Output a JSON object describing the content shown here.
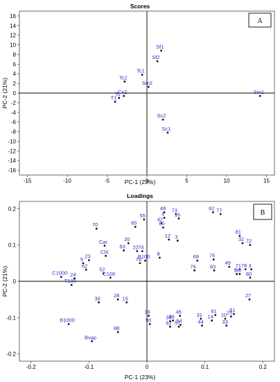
{
  "chart_data": [
    {
      "type": "scatter",
      "panel": "A",
      "title": "Scores",
      "xlabel": "PC-1 (23%)",
      "ylabel": "PC-2 (21%)",
      "xlim": [
        -16,
        16
      ],
      "ylim": [
        -17,
        17
      ],
      "xticks": [
        -15,
        -10,
        -5,
        0,
        5,
        10,
        15
      ],
      "yticks": [
        16,
        14,
        12,
        10,
        8,
        6,
        4,
        2,
        0,
        -2,
        -4,
        -6,
        -8,
        -10,
        -12,
        -14,
        -16
      ],
      "grid": false,
      "points": [
        {
          "label": "Sf1",
          "x": 1.8,
          "y": 8.8
        },
        {
          "label": "Sf2",
          "x": 1.3,
          "y": 6.6
        },
        {
          "label": "Tc1",
          "x": -0.6,
          "y": 3.8
        },
        {
          "label": "Tc2",
          "x": -2.8,
          "y": 2.4
        },
        {
          "label": "Sm2",
          "x": 0.2,
          "y": 1.3
        },
        {
          "label": "Cs2",
          "x": -2.9,
          "y": -0.6
        },
        {
          "label": "Ts",
          "x": -3.5,
          "y": -1.0
        },
        {
          "label": "T1",
          "x": -4.0,
          "y": -1.8
        },
        {
          "label": "Sc2",
          "x": 2.0,
          "y": -5.5
        },
        {
          "label": "Sc1",
          "x": 2.6,
          "y": -8.2
        },
        {
          "label": "Sm1",
          "x": 14.2,
          "y": -0.6
        }
      ]
    },
    {
      "type": "scatter",
      "panel": "B",
      "title": "Loadings",
      "xlabel": "PC-1 (23%)",
      "ylabel": "PC-2 (21%)",
      "xlim": [
        -0.22,
        0.22
      ],
      "ylim": [
        -0.22,
        0.22
      ],
      "xticks": [
        -0.2,
        -0.1,
        0,
        0.1,
        0.2
      ],
      "yticks": [
        0.2,
        0.1,
        0,
        -0.1,
        -0.2
      ],
      "grid": false,
      "points": [
        {
          "label": "48",
          "x": 0.03,
          "y": 0.19
        },
        {
          "label": "73",
          "x": 0.05,
          "y": 0.185
        },
        {
          "label": "16",
          "x": 0.055,
          "y": 0.173
        },
        {
          "label": "4",
          "x": 0.03,
          "y": 0.175
        },
        {
          "label": "42",
          "x": 0.025,
          "y": 0.16
        },
        {
          "label": "60",
          "x": 0.028,
          "y": 0.148
        },
        {
          "label": "62",
          "x": 0.114,
          "y": 0.19
        },
        {
          "label": "77",
          "x": 0.127,
          "y": 0.185
        },
        {
          "label": "55",
          "x": -0.005,
          "y": 0.17
        },
        {
          "label": "65",
          "x": -0.02,
          "y": 0.15
        },
        {
          "label": "12",
          "x": 0.038,
          "y": 0.115
        },
        {
          "label": "3",
          "x": 0.053,
          "y": 0.112
        },
        {
          "label": "81",
          "x": 0.16,
          "y": 0.125
        },
        {
          "label": "32",
          "x": 0.165,
          "y": 0.105
        },
        {
          "label": "72",
          "x": 0.178,
          "y": 0.1
        },
        {
          "label": "70",
          "x": -0.087,
          "y": 0.145
        },
        {
          "label": "20",
          "x": -0.032,
          "y": 0.105
        },
        {
          "label": "Car",
          "x": -0.073,
          "y": 0.098
        },
        {
          "label": "22",
          "x": -0.017,
          "y": 0.083
        },
        {
          "label": "74",
          "x": -0.008,
          "y": 0.083
        },
        {
          "label": "Chl",
          "x": -0.071,
          "y": 0.07
        },
        {
          "label": "83",
          "x": -0.04,
          "y": 0.085
        },
        {
          "label": "8",
          "x": 0.022,
          "y": 0.065
        },
        {
          "label": "B100",
          "x": -0.003,
          "y": 0.057
        },
        {
          "label": "78",
          "x": -0.012,
          "y": 0.05
        },
        {
          "label": "69",
          "x": 0.087,
          "y": 0.057
        },
        {
          "label": "75",
          "x": 0.115,
          "y": 0.06
        },
        {
          "label": "76",
          "x": 0.082,
          "y": 0.03
        },
        {
          "label": "83",
          "x": 0.116,
          "y": 0.03
        },
        {
          "label": "49",
          "x": 0.142,
          "y": 0.04
        },
        {
          "label": "71",
          "x": 0.16,
          "y": 0.033
        },
        {
          "label": "78",
          "x": 0.17,
          "y": 0.033
        },
        {
          "label": "3",
          "x": 0.18,
          "y": 0.033
        },
        {
          "label": "5",
          "x": 0.155,
          "y": 0.02
        },
        {
          "label": "68",
          "x": 0.16,
          "y": 0.02
        },
        {
          "label": "80",
          "x": 0.178,
          "y": 0.01
        },
        {
          "label": "23",
          "x": -0.1,
          "y": 0.058
        },
        {
          "label": "9",
          "x": -0.11,
          "y": 0.05
        },
        {
          "label": "62",
          "x": -0.105,
          "y": 0.032
        },
        {
          "label": "52",
          "x": -0.075,
          "y": 0.022
        },
        {
          "label": "C100",
          "x": -0.063,
          "y": 0.01
        },
        {
          "label": "C1000",
          "x": -0.148,
          "y": 0.012
        },
        {
          "label": "T100",
          "x": -0.13,
          "y": -0.01
        },
        {
          "label": "24",
          "x": -0.125,
          "y": 0.008
        },
        {
          "label": "30",
          "x": -0.083,
          "y": -0.058
        },
        {
          "label": "28",
          "x": -0.05,
          "y": -0.05
        },
        {
          "label": "15",
          "x": -0.035,
          "y": -0.058
        },
        {
          "label": "27",
          "x": 0.177,
          "y": -0.05
        },
        {
          "label": "19",
          "x": 0.003,
          "y": -0.095
        },
        {
          "label": "46",
          "x": 0.057,
          "y": -0.095
        },
        {
          "label": "61",
          "x": 0.118,
          "y": -0.093
        },
        {
          "label": "51",
          "x": 0.15,
          "y": -0.09
        },
        {
          "label": "31",
          "x": 0.093,
          "y": -0.103
        },
        {
          "label": "10",
          "x": 0.135,
          "y": -0.103
        },
        {
          "label": "25",
          "x": 0.145,
          "y": -0.097
        },
        {
          "label": "36",
          "x": 0.045,
          "y": -0.108
        },
        {
          "label": "38",
          "x": 0.04,
          "y": -0.11
        },
        {
          "label": "14",
          "x": 0.112,
          "y": -0.108
        },
        {
          "label": "44",
          "x": 0.095,
          "y": -0.122
        },
        {
          "label": "33",
          "x": 0.137,
          "y": -0.122
        },
        {
          "label": "82",
          "x": 0.04,
          "y": -0.125
        },
        {
          "label": "54",
          "x": 0.058,
          "y": -0.12
        },
        {
          "label": "57",
          "x": 0.055,
          "y": -0.125
        },
        {
          "label": "90",
          "x": 0.005,
          "y": -0.118
        },
        {
          "label": "B1000",
          "x": -0.135,
          "y": -0.118
        },
        {
          "label": "88",
          "x": -0.05,
          "y": -0.14
        },
        {
          "label": "Bvap",
          "x": -0.095,
          "y": -0.165
        }
      ]
    }
  ],
  "badges": {
    "a": "A",
    "b": "B"
  }
}
